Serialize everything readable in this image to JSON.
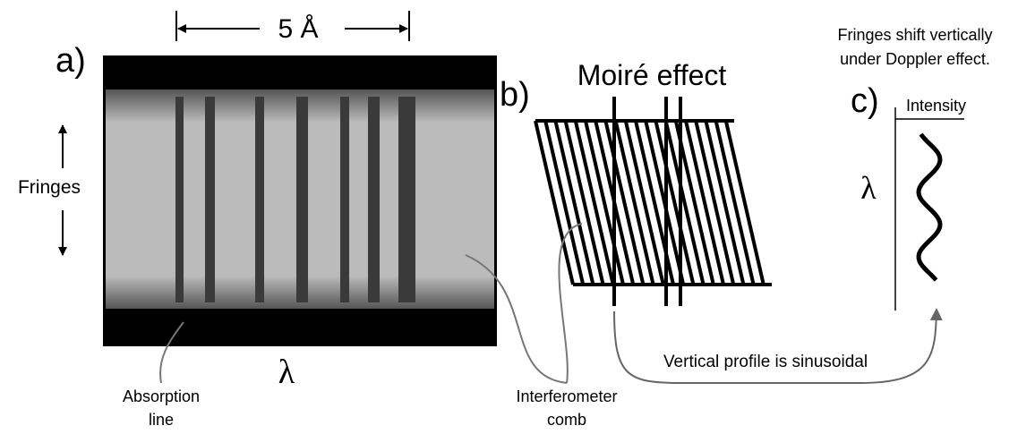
{
  "panel_a": {
    "label": "a)",
    "scale": "5 Å",
    "fringes": "Fringes",
    "axis": "λ",
    "absorption": [
      "Absorption",
      "line"
    ]
  },
  "panel_b": {
    "label": "b)",
    "title": "Moiré effect",
    "comb": [
      "Interferometer",
      "comb"
    ]
  },
  "panel_c": {
    "label": "c)",
    "axis_x": "Intensity",
    "axis_y": "λ",
    "note": [
      "Fringes shift vertically",
      "under Doppler effect."
    ]
  },
  "profile_note": "Vertical profile is sinusoidal"
}
